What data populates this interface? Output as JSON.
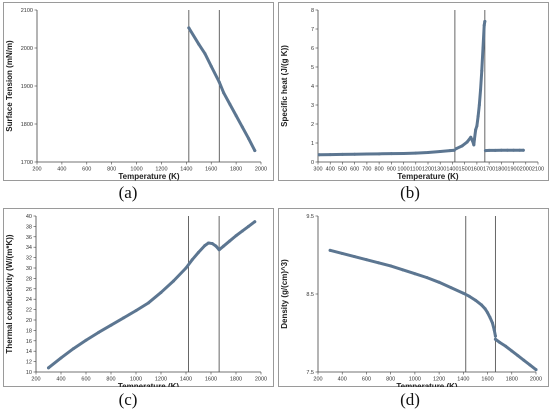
{
  "colors": {
    "series": "#5c7691",
    "vline": "#555555",
    "axis": "#444444",
    "frame": "#9a9a9a"
  },
  "chart_data": [
    {
      "id": "a",
      "type": "line",
      "caption": "(a)",
      "xlabel": "Temperature (K)",
      "ylabel": "Surface Tension (mN/m)",
      "xlim": [
        200,
        2000
      ],
      "ylim": [
        1700,
        2100
      ],
      "xticks": [
        200,
        400,
        600,
        800,
        1000,
        1200,
        1400,
        1600,
        1800,
        2000
      ],
      "yticks": [
        1700,
        1800,
        1900,
        2000,
        2100
      ],
      "vlines": [
        1420,
        1665
      ],
      "series": [
        {
          "x": [
            1420,
            1500,
            1550,
            1600,
            1665,
            1700,
            1750,
            1800,
            1850,
            1900,
            1950
          ],
          "y": [
            2053,
            2010,
            1985,
            1952,
            1910,
            1882,
            1852,
            1822,
            1792,
            1762,
            1730
          ]
        }
      ]
    },
    {
      "id": "b",
      "type": "line",
      "caption": "(b)",
      "xlabel": "Temperature (K)",
      "ylabel": "Specific heat (J/(g K))",
      "xlim": [
        300,
        2100
      ],
      "ylim": [
        0,
        8
      ],
      "xticks": [
        300,
        400,
        500,
        600,
        700,
        800,
        900,
        1000,
        1100,
        1200,
        1300,
        1400,
        1500,
        1600,
        1700,
        1800,
        1900,
        2000,
        2100
      ],
      "yticks": [
        0,
        1,
        2,
        3,
        4,
        5,
        6,
        7,
        8
      ],
      "vlines": [
        1420,
        1665
      ],
      "series": [
        {
          "x": [
            310,
            400,
            500,
            600,
            700,
            800,
            900,
            1000,
            1100,
            1200,
            1300,
            1380,
            1415
          ],
          "y": [
            0.38,
            0.39,
            0.4,
            0.41,
            0.42,
            0.43,
            0.44,
            0.45,
            0.47,
            0.5,
            0.55,
            0.6,
            0.62
          ]
        },
        {
          "x": [
            1430,
            1480,
            1520,
            1550,
            1565,
            1575,
            1580,
            1590,
            1600,
            1610,
            1620,
            1630,
            1640,
            1650,
            1660,
            1665
          ],
          "y": [
            0.7,
            0.85,
            1.05,
            1.3,
            1.1,
            0.9,
            1.2,
            1.7,
            1.9,
            2.4,
            3.0,
            3.8,
            4.8,
            6.0,
            7.2,
            7.4
          ]
        },
        {
          "x": [
            1670,
            1700,
            1750,
            1800,
            1850,
            1900,
            1950,
            1980
          ],
          "y": [
            0.6,
            0.61,
            0.61,
            0.62,
            0.62,
            0.62,
            0.62,
            0.62
          ]
        }
      ]
    },
    {
      "id": "c",
      "type": "line",
      "caption": "(c)",
      "xlabel": "Temperature (K)",
      "ylabel": "Thermal conductivity (W/(m*K))",
      "xlim": [
        200,
        2000
      ],
      "ylim": [
        10,
        40
      ],
      "xticks": [
        200,
        400,
        600,
        800,
        1000,
        1200,
        1400,
        1600,
        1800,
        2000
      ],
      "yticks": [
        10,
        12,
        14,
        16,
        18,
        20,
        22,
        24,
        26,
        28,
        30,
        32,
        34,
        36,
        38,
        40
      ],
      "vlines": [
        1420,
        1665
      ],
      "series": [
        {
          "x": [
            300,
            400,
            500,
            600,
            700,
            800,
            900,
            1000,
            1100,
            1200,
            1300,
            1400,
            1450,
            1500,
            1550,
            1580,
            1610,
            1640,
            1665,
            1700,
            1750,
            1800,
            1850,
            1900,
            1950
          ],
          "y": [
            10.8,
            12.7,
            14.5,
            16.1,
            17.6,
            19.0,
            20.4,
            21.8,
            23.3,
            25.3,
            27.5,
            30.0,
            31.6,
            33.0,
            34.3,
            34.8,
            34.7,
            34.2,
            33.5,
            34.2,
            35.2,
            36.2,
            37.1,
            38.0,
            38.9
          ]
        }
      ]
    },
    {
      "id": "d",
      "type": "line",
      "caption": "(d)",
      "xlabel": "Temperature (K)",
      "ylabel": "Density (g/(cm)^3)",
      "xlim": [
        200,
        2000
      ],
      "ylim": [
        7.5,
        9.5
      ],
      "xticks": [
        200,
        400,
        600,
        800,
        1000,
        1200,
        1400,
        1600,
        1800,
        2000
      ],
      "yticks": [
        7.5,
        8.5,
        9.5
      ],
      "vlines": [
        1420,
        1665
      ],
      "series": [
        {
          "x": [
            300,
            400,
            500,
            600,
            700,
            800,
            900,
            1000,
            1100,
            1200,
            1300,
            1400,
            1450,
            1500,
            1550,
            1580,
            1600,
            1620,
            1640,
            1655,
            1665
          ],
          "y": [
            9.06,
            9.02,
            8.98,
            8.94,
            8.9,
            8.86,
            8.81,
            8.76,
            8.71,
            8.65,
            8.58,
            8.51,
            8.47,
            8.42,
            8.36,
            8.31,
            8.26,
            8.2,
            8.13,
            8.04,
            7.96
          ]
        },
        {
          "x": [
            1665,
            1700,
            1750,
            1800,
            1850,
            1900,
            1950,
            2000
          ],
          "y": [
            7.92,
            7.88,
            7.83,
            7.77,
            7.71,
            7.65,
            7.59,
            7.53
          ]
        }
      ]
    }
  ]
}
